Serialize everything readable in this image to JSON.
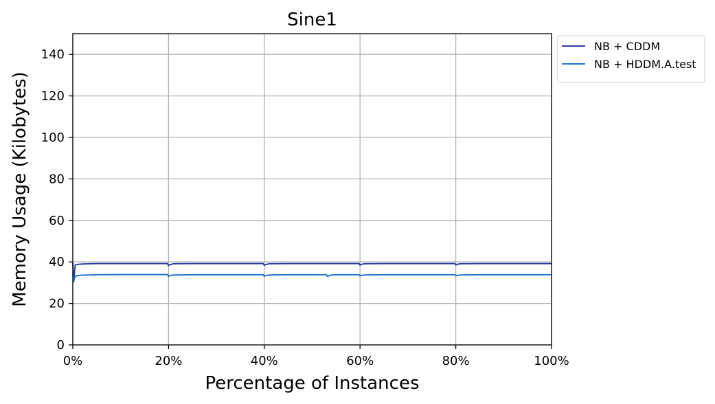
{
  "chart_data": {
    "type": "line",
    "title": "Sine1",
    "xlabel": "Percentage of Instances",
    "ylabel": "Memory Usage (Kilobytes)",
    "xlim": [
      0,
      100
    ],
    "ylim": [
      0,
      150
    ],
    "xticks": [
      0,
      20,
      40,
      60,
      80,
      100
    ],
    "xtick_labels": [
      "0%",
      "20%",
      "40%",
      "60%",
      "80%",
      "100%"
    ],
    "yticks": [
      0,
      20,
      40,
      60,
      80,
      100,
      120,
      140
    ],
    "ytick_labels": [
      "0",
      "20",
      "40",
      "60",
      "80",
      "100",
      "120",
      "140"
    ],
    "grid": true,
    "legend_position": "outside-top-right",
    "series": [
      {
        "name": "NB + CDDM",
        "color": "#2b3fa5",
        "x": [
          0,
          0.2,
          0.5,
          1,
          2,
          5,
          10,
          15,
          19.8,
          20,
          20.2,
          21,
          25,
          30,
          35,
          39.8,
          40,
          40.2,
          41,
          45,
          50,
          55,
          59.8,
          60,
          60.2,
          61,
          65,
          70,
          75,
          79.8,
          80,
          80.2,
          81,
          85,
          90,
          95,
          100
        ],
        "y": [
          39.5,
          30.5,
          38.5,
          38.8,
          39.0,
          39.2,
          39.2,
          39.2,
          39.2,
          38.2,
          38.6,
          39.1,
          39.2,
          39.2,
          39.2,
          39.2,
          38.3,
          38.7,
          39.1,
          39.2,
          39.2,
          39.2,
          39.2,
          38.4,
          38.8,
          39.1,
          39.2,
          39.2,
          39.2,
          39.2,
          38.5,
          38.8,
          39.1,
          39.2,
          39.2,
          39.2,
          39.2
        ]
      },
      {
        "name": "NB + HDDM.A.test",
        "color": "#2277d0",
        "x": [
          0,
          0.2,
          0.5,
          1,
          2,
          5,
          10,
          15,
          19.8,
          20,
          20.2,
          21,
          25,
          30,
          35,
          39.8,
          40,
          40.2,
          41,
          45,
          50,
          53,
          53.2,
          53.6,
          54,
          55,
          59.8,
          60,
          60.2,
          61,
          65,
          70,
          75,
          79.8,
          80,
          80.2,
          81,
          85,
          90,
          95,
          100
        ],
        "y": [
          34.0,
          31.0,
          33.0,
          33.4,
          33.6,
          33.8,
          33.9,
          33.9,
          33.9,
          33.0,
          33.4,
          33.7,
          33.8,
          33.8,
          33.8,
          33.8,
          33.0,
          33.4,
          33.7,
          33.8,
          33.8,
          33.8,
          33.0,
          33.4,
          33.7,
          33.8,
          33.8,
          33.2,
          33.5,
          33.7,
          33.8,
          33.8,
          33.8,
          33.8,
          33.3,
          33.5,
          33.7,
          33.8,
          33.8,
          33.8,
          33.8
        ]
      }
    ]
  }
}
